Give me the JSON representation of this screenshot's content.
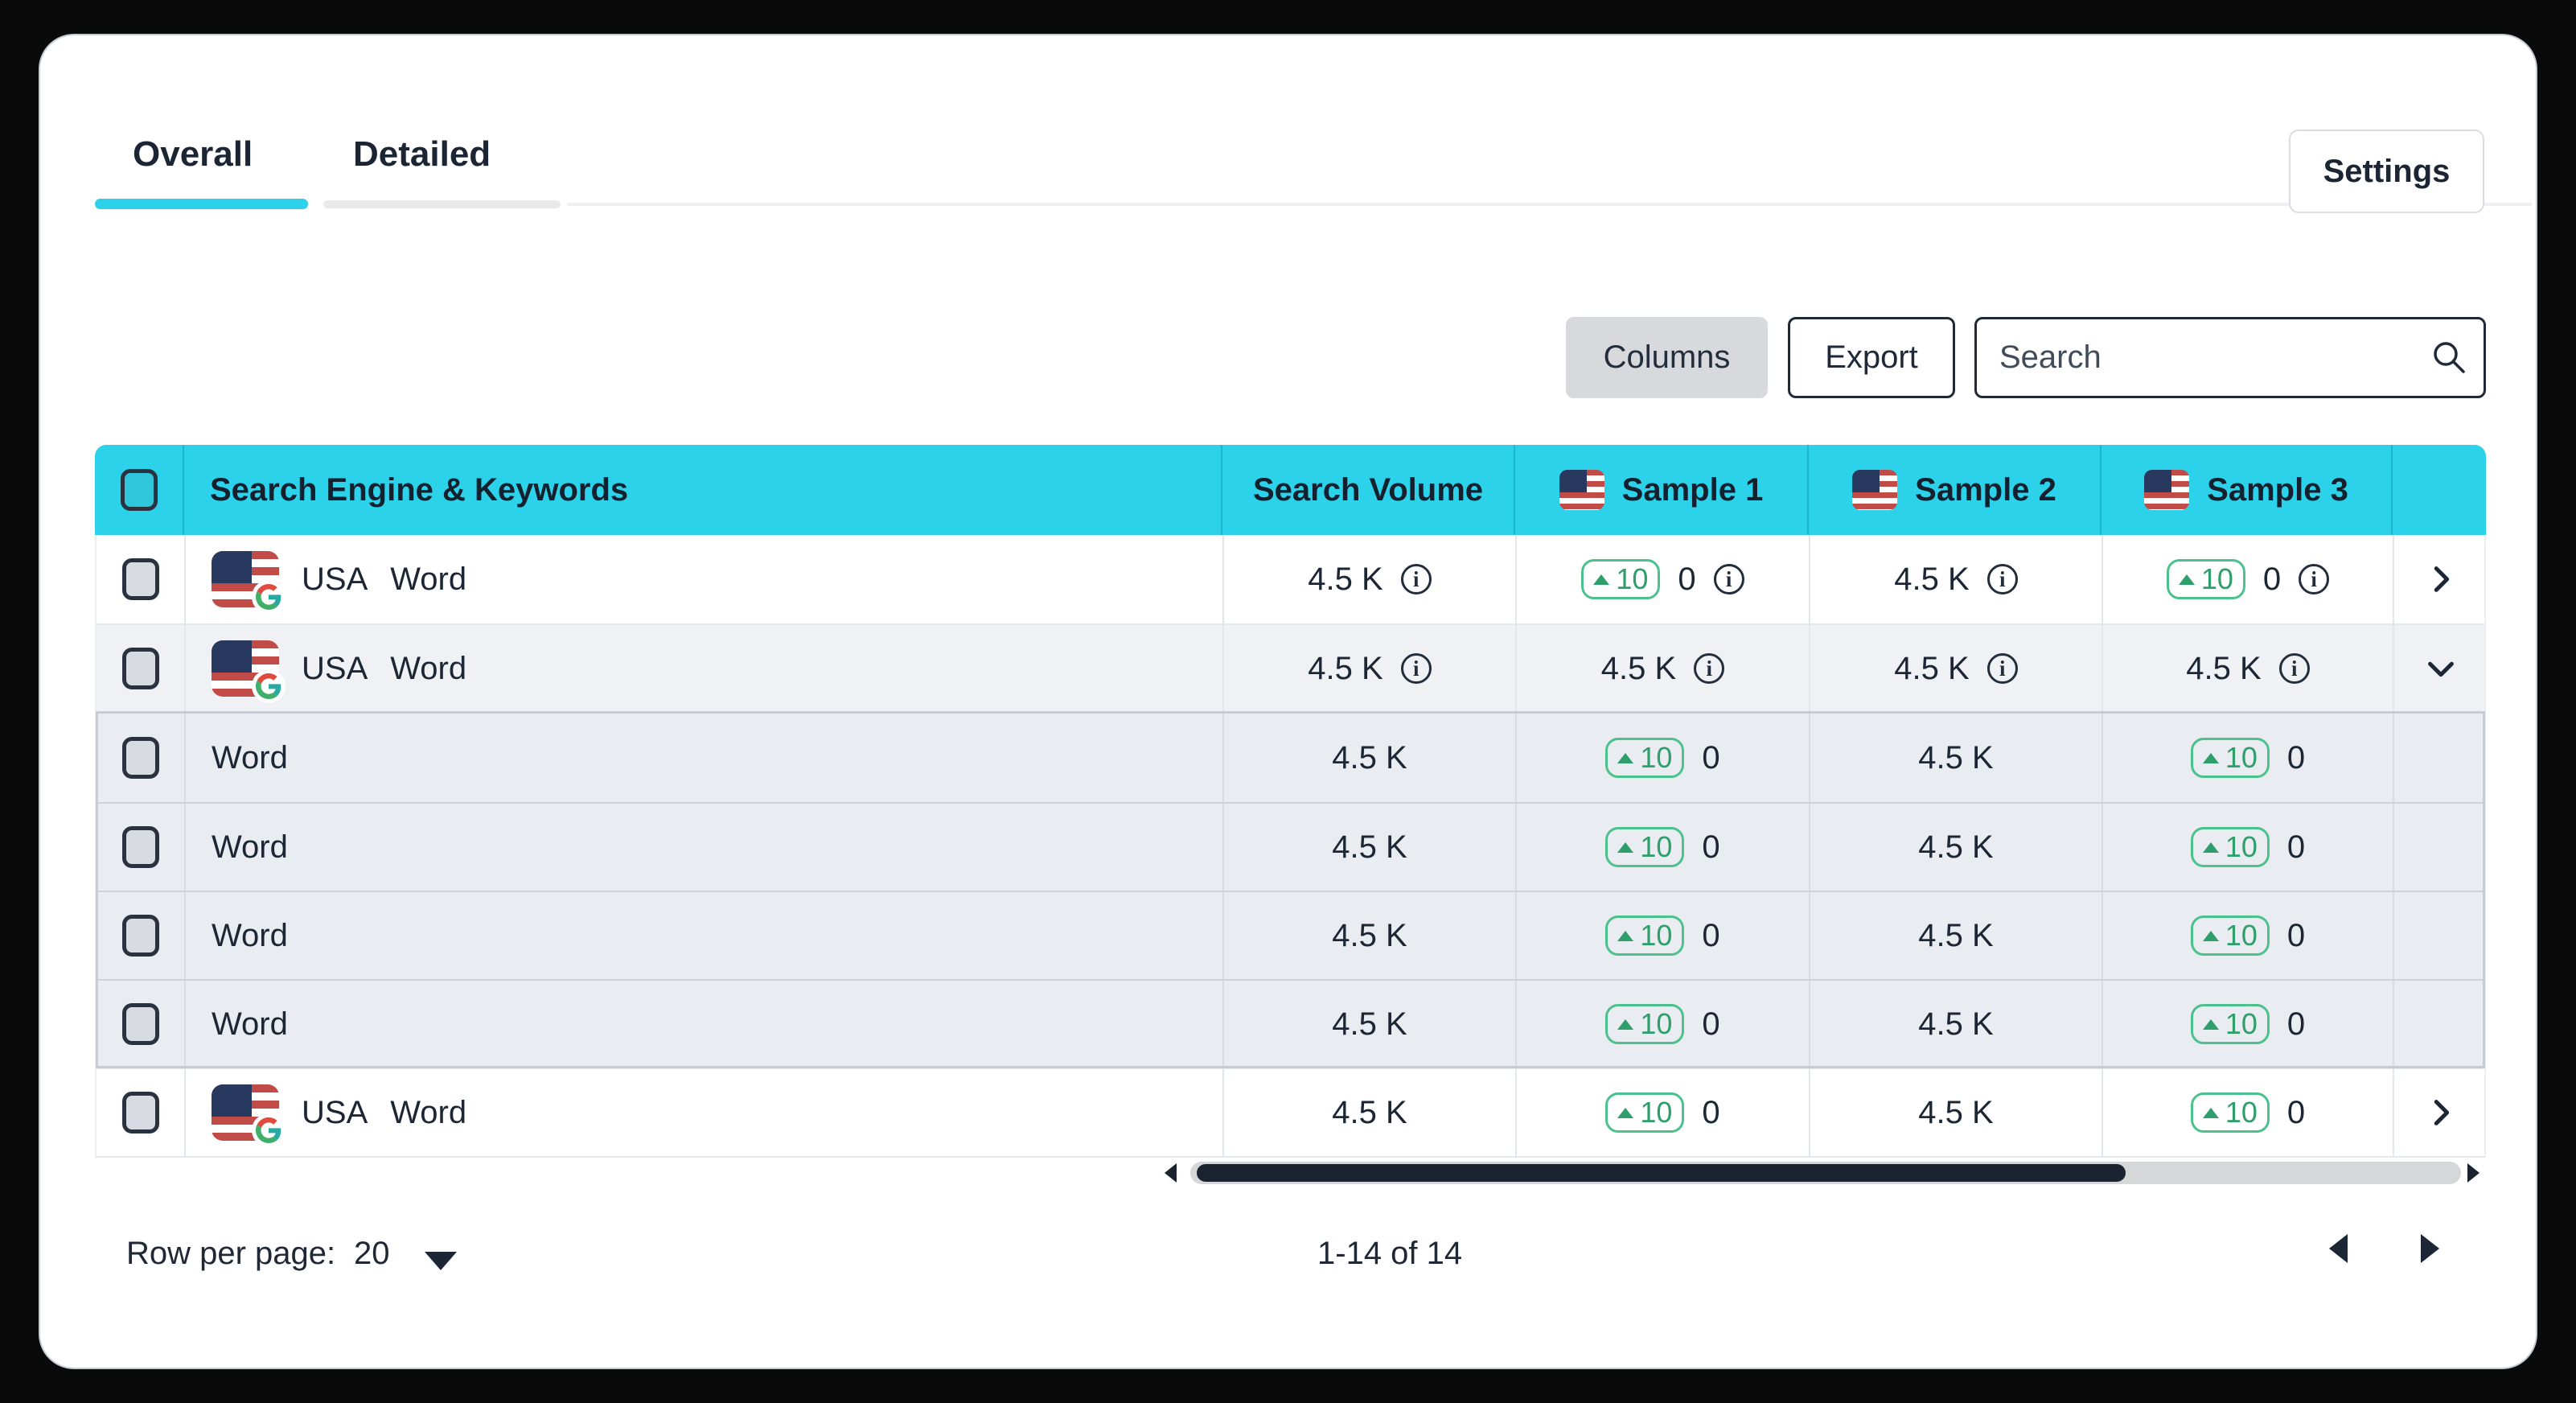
{
  "tabs": {
    "overall": "Overall",
    "detailed": "Detailed",
    "active": "Overall"
  },
  "settings_button": "Settings",
  "toolbar": {
    "columns_button": "Columns",
    "export_button": "Export",
    "search_placeholder": "Search",
    "search_value": ""
  },
  "table": {
    "headers": {
      "keywords": "Search Engine & Keywords",
      "volume": "Search Volume",
      "samples": [
        {
          "label": "Sample 1",
          "flag": "USA"
        },
        {
          "label": "Sample 2",
          "flag": "USA"
        },
        {
          "label": "Sample 3",
          "flag": "USA"
        }
      ]
    },
    "rows": [
      {
        "type": "parent",
        "engine": "google-usa",
        "country": "USA",
        "keyword": "Word",
        "expand": "right",
        "values": [
          {
            "text": "4.5 K",
            "info": true
          },
          {
            "badge": "10",
            "text": "0",
            "info": true
          },
          {
            "text": "4.5 K",
            "info": true
          },
          {
            "badge": "10",
            "text": "0",
            "info": true
          }
        ]
      },
      {
        "type": "parent",
        "engine": "google-usa",
        "country": "USA",
        "keyword": "Word",
        "expand": "down",
        "expanded": true,
        "values": [
          {
            "text": "4.5 K",
            "info": true
          },
          {
            "text": "4.5 K",
            "info": true
          },
          {
            "text": "4.5 K",
            "info": true
          },
          {
            "text": "4.5 K",
            "info": true
          }
        ]
      },
      {
        "type": "child",
        "keyword": "Word",
        "values": [
          {
            "text": "4.5 K"
          },
          {
            "badge": "10",
            "text": "0"
          },
          {
            "text": "4.5 K"
          },
          {
            "badge": "10",
            "text": "0"
          }
        ]
      },
      {
        "type": "child",
        "keyword": "Word",
        "values": [
          {
            "text": "4.5 K"
          },
          {
            "badge": "10",
            "text": "0"
          },
          {
            "text": "4.5 K"
          },
          {
            "badge": "10",
            "text": "0"
          }
        ]
      },
      {
        "type": "child",
        "keyword": "Word",
        "values": [
          {
            "text": "4.5 K"
          },
          {
            "badge": "10",
            "text": "0"
          },
          {
            "text": "4.5 K"
          },
          {
            "badge": "10",
            "text": "0"
          }
        ]
      },
      {
        "type": "child",
        "keyword": "Word",
        "values": [
          {
            "text": "4.5 K"
          },
          {
            "badge": "10",
            "text": "0"
          },
          {
            "text": "4.5 K"
          },
          {
            "badge": "10",
            "text": "0"
          }
        ]
      },
      {
        "type": "parent",
        "engine": "google-usa",
        "country": "USA",
        "keyword": "Word",
        "expand": "right",
        "values": [
          {
            "text": "4.5 K"
          },
          {
            "badge": "10",
            "text": "0"
          },
          {
            "text": "4.5 K"
          },
          {
            "badge": "10",
            "text": "0"
          }
        ]
      }
    ]
  },
  "pagination": {
    "rows_per_page_label": "Row per page:",
    "rows_per_page_value": "20",
    "range": "1-14 of 14"
  },
  "icons": {
    "info_glyph": "i"
  },
  "colors": {
    "accent_cyan": "#2bd2ea",
    "positive_green": "#2e9e6b",
    "badge_border_green": "#4cc18d",
    "text_dark": "#1c2634",
    "flag_red": "#c14b47",
    "flag_navy": "#27395f",
    "scroll_thumb": "#1b2330"
  }
}
